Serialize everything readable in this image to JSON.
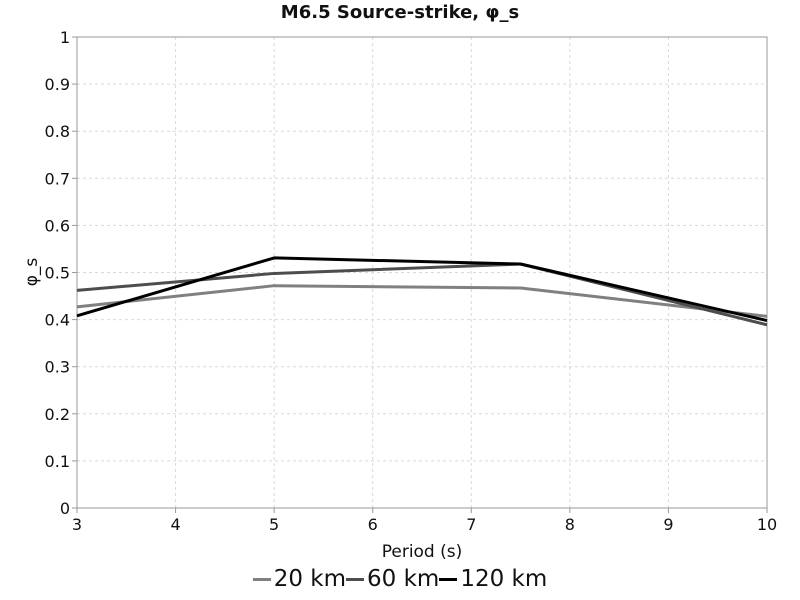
{
  "chart_data": {
    "type": "line",
    "title": "M6.5 Source-strike, φ_s",
    "xlabel": "Period (s)",
    "ylabel": "φ_s",
    "xlim": [
      3,
      10
    ],
    "ylim": [
      0,
      1
    ],
    "xticks": [
      3,
      4,
      5,
      6,
      7,
      8,
      9,
      10
    ],
    "yticks": [
      0,
      0.1,
      0.2,
      0.3,
      0.4,
      0.5,
      0.6,
      0.7,
      0.8,
      0.9,
      1
    ],
    "ytick_labels": [
      "0",
      "0.1",
      "0.2",
      "0.3",
      "0.4",
      "0.5",
      "0.6",
      "0.7",
      "0.8",
      "0.9",
      "1"
    ],
    "grid": true,
    "legend_position": "bottom",
    "series": [
      {
        "name": "20 km",
        "color": "#808080",
        "x": [
          3,
          5,
          7.5,
          10
        ],
        "y": [
          0.427,
          0.472,
          0.467,
          0.407
        ]
      },
      {
        "name": "60 km",
        "color": "#4d4d4d",
        "x": [
          3,
          5,
          7.5,
          10
        ],
        "y": [
          0.462,
          0.498,
          0.518,
          0.389
        ]
      },
      {
        "name": "120 km",
        "color": "#000000",
        "x": [
          3,
          5,
          7.5,
          10
        ],
        "y": [
          0.408,
          0.531,
          0.518,
          0.398
        ]
      }
    ]
  }
}
